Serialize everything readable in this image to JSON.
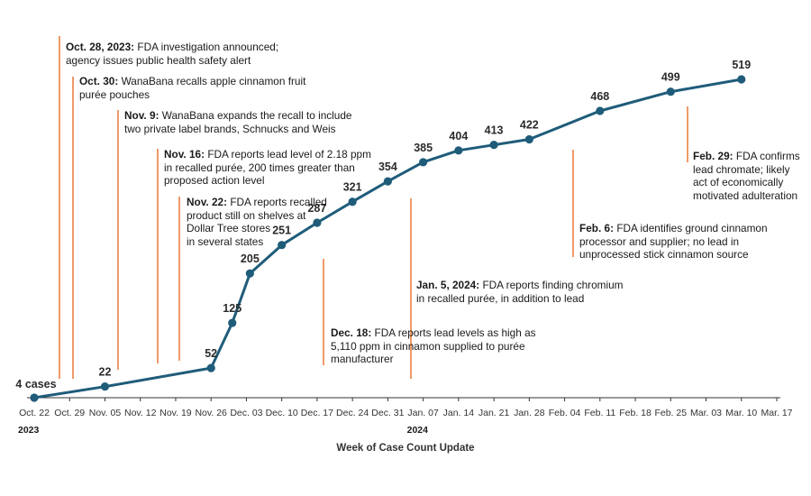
{
  "chart_data": {
    "type": "line",
    "title": "",
    "xlabel": "Week of Case Count Update",
    "ylabel": "",
    "ylim": [
      0,
      560
    ],
    "grid": false,
    "line_color": "#1f5c7a",
    "annotation_color": "#e8702a",
    "categories": [
      "Oct. 22",
      "Oct. 29",
      "Nov. 05",
      "Nov. 12",
      "Nov. 19",
      "Nov. 26",
      "Dec. 03",
      "Dec. 10",
      "Dec. 17",
      "Dec. 24",
      "Dec. 31",
      "Jan. 07",
      "Jan. 14",
      "Jan. 21",
      "Jan. 28",
      "Feb. 04",
      "Feb. 11",
      "Feb. 18",
      "Feb. 25",
      "Mar. 03",
      "Mar. 10",
      "Mar. 17"
    ],
    "year_labels": [
      {
        "text": "2023",
        "category_index": 0
      },
      {
        "text": "2024",
        "category_index": 11
      }
    ],
    "series": [
      {
        "name": "Cases",
        "points": [
          {
            "x": 0,
            "y": 4,
            "label": "4 cases"
          },
          {
            "x": 2,
            "y": 22,
            "label": "22"
          },
          {
            "x": 5,
            "y": 52,
            "label": "52"
          },
          {
            "x": 5.6,
            "y": 125,
            "label": "125"
          },
          {
            "x": 6.1,
            "y": 205,
            "label": "205"
          },
          {
            "x": 7,
            "y": 251,
            "label": "251"
          },
          {
            "x": 8,
            "y": 287,
            "label": "287"
          },
          {
            "x": 9,
            "y": 321,
            "label": "321"
          },
          {
            "x": 10,
            "y": 354,
            "label": "354"
          },
          {
            "x": 11,
            "y": 385,
            "label": "385"
          },
          {
            "x": 12,
            "y": 404,
            "label": "404"
          },
          {
            "x": 13,
            "y": 413,
            "label": "413"
          },
          {
            "x": 14,
            "y": 422,
            "label": "422"
          },
          {
            "x": 16,
            "y": 468,
            "label": "468"
          },
          {
            "x": 18,
            "y": 499,
            "label": "499"
          },
          {
            "x": 20,
            "y": 519,
            "label": "519"
          }
        ]
      }
    ],
    "annotations": [
      {
        "id": "oct28",
        "x": 1,
        "y_from": 20,
        "y_to": 540,
        "date": "Oct. 28, 2023:",
        "lines": [
          "FDA investigation announced;",
          "agency issues public health safety alert"
        ]
      },
      {
        "id": "oct30",
        "x": 1.35,
        "y_from": 20,
        "y_to": 485,
        "date": "Oct. 30:",
        "lines": [
          "WanaBana recalls apple cinnamon fruit",
          "purée pouches"
        ]
      },
      {
        "id": "nov9",
        "x": 2.35,
        "y_from": 30,
        "y_to": 430,
        "date": "Nov. 9:",
        "lines": [
          "WanaBana expands the recall to include",
          "two private label brands, Schnucks and Weis"
        ]
      },
      {
        "id": "nov16",
        "x": 3.6,
        "y_from": 40,
        "y_to": 365,
        "date": "Nov. 16:",
        "lines": [
          "FDA reports lead level of 2.18 ppm",
          "in recalled purée, 200 times greater than",
          "proposed action level"
        ]
      },
      {
        "id": "nov22",
        "x": 4.2,
        "y_from": 45,
        "y_to": 305,
        "date": "Nov. 22:",
        "lines": [
          "FDA reports recalled",
          "product still on shelves at",
          "Dollar Tree stores",
          "in several states"
        ]
      },
      {
        "id": "dec18",
        "x": 8.25,
        "y_from": 45,
        "y_to": 198,
        "date": "Dec. 18:",
        "lines": [
          "FDA reports lead levels as high as",
          "5,110 ppm in cinnamon supplied to purée",
          "manufacturer"
        ]
      },
      {
        "id": "jan5",
        "x": 10.7,
        "y_from": 55,
        "y_to": 285,
        "date": "Jan. 5, 2024:",
        "lines": [
          "FDA reports finding chromium",
          "in recalled purée, in addition to lead"
        ]
      },
      {
        "id": "feb6",
        "x": 14.25,
        "y_from": 205,
        "y_to": 380,
        "date": "Feb. 6:",
        "lines": [
          "FDA identifies ground cinnamon",
          "processor and supplier; no lead in",
          "unprocessed stick cinnamon source"
        ]
      },
      {
        "id": "feb29",
        "x": 18.2,
        "y_from": 310,
        "y_to": 415,
        "date": "Feb. 29:",
        "lines": [
          "FDA confirms",
          "lead chromate; likely",
          "act of economically",
          "motivated adulteration"
        ]
      }
    ]
  }
}
